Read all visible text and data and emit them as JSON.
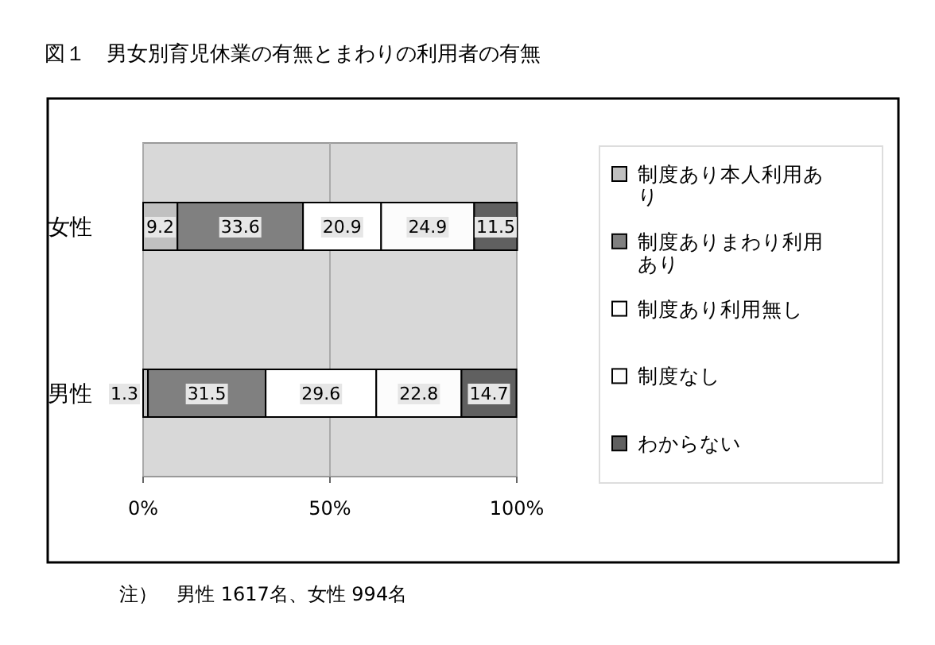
{
  "chart_data": {
    "type": "bar",
    "orientation": "horizontal",
    "stacked": true,
    "title": "図１　男女別育児休業の有無とまわりの利用者の有無",
    "categories": [
      "女性",
      "男性"
    ],
    "series": [
      {
        "name": "制度あり本人利用あり",
        "color": "#c0c0c0",
        "values": [
          9.2,
          1.3
        ]
      },
      {
        "name": "制度ありまわり利用あり",
        "color": "#808080",
        "values": [
          33.6,
          31.5
        ]
      },
      {
        "name": "制度あり利用無し",
        "color": "#ffffff",
        "values": [
          20.9,
          29.6
        ]
      },
      {
        "name": "制度なし",
        "color": "#fcfcfc",
        "values": [
          24.9,
          22.8
        ]
      },
      {
        "name": "わからない",
        "color": "#606060",
        "values": [
          11.5,
          14.7
        ]
      }
    ],
    "xlim": [
      0,
      100
    ],
    "xticks": [
      {
        "value": 0,
        "label": "0%"
      },
      {
        "value": 50,
        "label": "50%"
      },
      {
        "value": 100,
        "label": "100%"
      }
    ],
    "grid": "x",
    "legend": "right",
    "data_labels": true,
    "annotations": [
      "注）　男性 1617名、女性 994名"
    ]
  }
}
